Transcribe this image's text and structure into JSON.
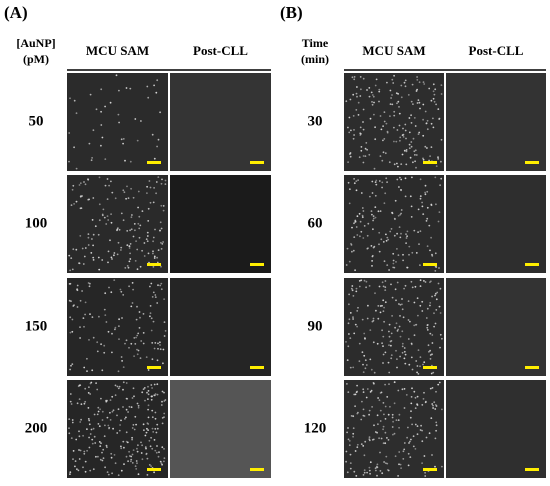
{
  "panels": [
    {
      "label": "(A)",
      "header": [
        "[AuNP]",
        "(pM)"
      ],
      "columns": [
        "MCU SAM",
        "Post-CLL"
      ],
      "rows": [
        "50",
        "100",
        "150",
        "200"
      ]
    },
    {
      "label": "(B)",
      "header": [
        "Time",
        "(min)"
      ],
      "columns": [
        "MCU SAM",
        "Post-CLL"
      ],
      "rows": [
        "30",
        "60",
        "90",
        "120"
      ]
    }
  ]
}
